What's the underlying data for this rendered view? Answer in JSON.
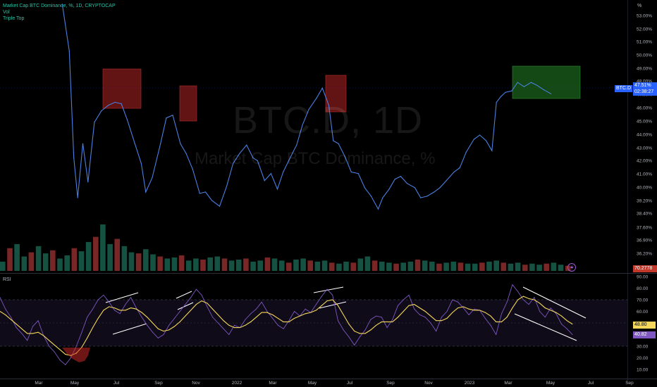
{
  "header": {
    "title_line": "Market Cap BTC Dominance, %, 1D, CRYPTOCAP",
    "indicator_vol": "Vol",
    "indicator_triple_top": "Triple Top"
  },
  "watermark": {
    "symbol": "BTC.D, 1D",
    "name": "Market Cap BTC Dominance, %"
  },
  "price_axis": {
    "unit_label": "%",
    "ticks": [
      "53.00%",
      "52.00%",
      "51.00%",
      "50.00%",
      "49.00%",
      "48.00%",
      "47.00%",
      "46.00%",
      "45.00%",
      "44.00%",
      "43.00%",
      "42.00%",
      "41.00%",
      "40.00%",
      "39.20%",
      "38.40%",
      "37.60%",
      "36.90%",
      "36.20%"
    ]
  },
  "price_tags": {
    "symbol_tag": "BTC.D",
    "last_value": "47.51%",
    "countdown": "02:38:27",
    "vol_value": "70.2778",
    "color_blue": "#2962ff",
    "color_red": "#c0392b"
  },
  "rsi_panel": {
    "label": "RSI",
    "ticks": [
      "90.00",
      "80.00",
      "70.00",
      "60.00",
      "50.00",
      "40.00",
      "30.00",
      "20.00",
      "10.00"
    ],
    "rsi_value": "40.82",
    "ma_value": "48.80",
    "rsi_color": "#7e57c2",
    "ma_color": "#f5d85b"
  },
  "time_axis": {
    "labels": [
      "Mar",
      "May",
      "Jul",
      "Sep",
      "Nov",
      "2022",
      "Mar",
      "May",
      "Jul",
      "Sep",
      "Nov",
      "2023",
      "Mar",
      "May",
      "Jul",
      "Sep"
    ]
  },
  "chart_data": [
    {
      "type": "line",
      "xlabel": "",
      "ylabel": "",
      "ylim": [
        38.0,
        53.8
      ],
      "series": [
        {
          "name": "BTC.D",
          "color": "#4a7fe0",
          "x": [
            "2021-05-01",
            "2021-05-12",
            "2021-05-19",
            "2021-05-25",
            "2021-06-02",
            "2021-06-10",
            "2021-06-20",
            "2021-07-01",
            "2021-07-12",
            "2021-07-22",
            "2021-08-01",
            "2021-08-10",
            "2021-08-22",
            "2021-09-01",
            "2021-09-08",
            "2021-09-18",
            "2021-10-01",
            "2021-10-10",
            "2021-10-20",
            "2021-11-01",
            "2021-11-10",
            "2021-11-20",
            "2021-12-01",
            "2021-12-10",
            "2021-12-20",
            "2022-01-01",
            "2022-01-12",
            "2022-01-22",
            "2022-02-01",
            "2022-02-12",
            "2022-02-22",
            "2022-03-01",
            "2022-03-12",
            "2022-03-22",
            "2022-04-01",
            "2022-04-10",
            "2022-04-22",
            "2022-05-01",
            "2022-05-10",
            "2022-05-20",
            "2022-06-01",
            "2022-06-10",
            "2022-06-20",
            "2022-06-27",
            "2022-07-05",
            "2022-07-15",
            "2022-07-25",
            "2022-08-05",
            "2022-08-15",
            "2022-08-25",
            "2022-09-05",
            "2022-09-12",
            "2022-09-22",
            "2022-10-01",
            "2022-10-10",
            "2022-10-20",
            "2022-11-01",
            "2022-11-10",
            "2022-11-20",
            "2022-12-01",
            "2022-12-10",
            "2022-12-20",
            "2023-01-01",
            "2023-01-10",
            "2023-01-20",
            "2023-02-01",
            "2023-02-10",
            "2023-02-20",
            "2023-03-01",
            "2023-03-08",
            "2023-03-15",
            "2023-03-22",
            "2023-04-01",
            "2023-04-10",
            "2023-04-20",
            "2023-05-01",
            "2023-05-10",
            "2023-05-20",
            "2023-06-01"
          ],
          "values": [
            53.8,
            50.5,
            43.0,
            40.2,
            44.0,
            41.3,
            45.5,
            46.3,
            46.7,
            46.9,
            46.8,
            45.7,
            44.0,
            42.6,
            40.6,
            41.6,
            44.0,
            45.8,
            46.0,
            44.0,
            43.3,
            42.2,
            40.5,
            40.6,
            40.0,
            39.6,
            41.0,
            42.6,
            43.3,
            43.9,
            43.0,
            42.8,
            41.4,
            41.9,
            40.8,
            42.0,
            43.1,
            43.9,
            45.3,
            46.4,
            47.2,
            47.9,
            46.7,
            44.2,
            44.0,
            43.1,
            42.0,
            41.9,
            40.9,
            40.3,
            39.4,
            40.2,
            40.8,
            41.5,
            41.7,
            41.2,
            40.9,
            40.2,
            40.3,
            40.6,
            40.9,
            41.4,
            42.0,
            42.3,
            43.4,
            44.3,
            44.6,
            44.2,
            43.5,
            46.9,
            47.3,
            47.6,
            47.7,
            48.3,
            48.0,
            48.3,
            48.1,
            47.8,
            47.5
          ]
        }
      ]
    },
    {
      "type": "bar",
      "ylabel": "",
      "series": [
        {
          "name": "Vol",
          "values": [
            9,
            22,
            26,
            14,
            18,
            24,
            17,
            20,
            12,
            15,
            22,
            19,
            28,
            33,
            45,
            26,
            31,
            24,
            18,
            17,
            21,
            16,
            14,
            12,
            13,
            15,
            10,
            12,
            11,
            13,
            14,
            12,
            10,
            11,
            12,
            9,
            10,
            13,
            12,
            10,
            8,
            11,
            12,
            10,
            9,
            10,
            8,
            7,
            9,
            8,
            12,
            14,
            10,
            9,
            8,
            7,
            8,
            9,
            11,
            10,
            9,
            7,
            8,
            9,
            8,
            7,
            7,
            8,
            9,
            10,
            8,
            7,
            8,
            6,
            7,
            6,
            7,
            8,
            6,
            5
          ]
        }
      ]
    },
    {
      "type": "line",
      "ylim": [
        5,
        92
      ],
      "series": [
        {
          "name": "RSI",
          "color": "#7e57c2",
          "values": [
            72,
            62,
            55,
            46,
            41,
            35,
            47,
            52,
            39,
            30,
            25,
            18,
            14,
            20,
            30,
            42,
            55,
            62,
            70,
            74,
            68,
            61,
            58,
            66,
            72,
            63,
            55,
            48,
            42,
            37,
            40,
            48,
            54,
            60,
            66,
            72,
            79,
            74,
            64,
            55,
            50,
            45,
            40,
            48,
            46,
            53,
            58,
            62,
            68,
            60,
            54,
            48,
            45,
            52,
            60,
            56,
            62,
            59,
            66,
            73,
            79,
            74,
            52,
            44,
            38,
            31,
            38,
            44,
            53,
            56,
            55,
            46,
            53,
            65,
            70,
            74,
            62,
            57,
            55,
            50,
            43,
            55,
            60,
            70,
            68,
            63,
            57,
            62,
            61,
            54,
            48,
            40,
            58,
            68,
            83,
            77,
            70,
            66,
            72,
            60,
            55,
            63,
            58,
            49,
            45,
            40
          ]
        },
        {
          "name": "RSI-based MA",
          "color": "#f5d85b",
          "values": [
            60,
            57,
            53,
            49,
            45,
            41,
            41,
            42,
            39,
            35,
            31,
            27,
            23,
            22,
            24,
            29,
            37,
            46,
            54,
            61,
            64,
            63,
            61,
            61,
            63,
            62,
            59,
            55,
            50,
            45,
            43,
            44,
            47,
            51,
            56,
            61,
            66,
            69,
            67,
            62,
            57,
            52,
            48,
            46,
            46,
            48,
            51,
            55,
            59,
            59,
            57,
            54,
            51,
            51,
            54,
            56,
            58,
            59,
            61,
            65,
            69,
            70,
            65,
            57,
            49,
            43,
            41,
            41,
            44,
            48,
            51,
            51,
            51,
            55,
            60,
            65,
            66,
            63,
            60,
            56,
            52,
            52,
            54,
            59,
            63,
            64,
            62,
            61,
            61,
            59,
            56,
            51,
            51,
            55,
            63,
            70,
            73,
            71,
            70,
            67,
            63,
            61,
            59,
            56,
            52,
            49
          ]
        }
      ]
    }
  ]
}
